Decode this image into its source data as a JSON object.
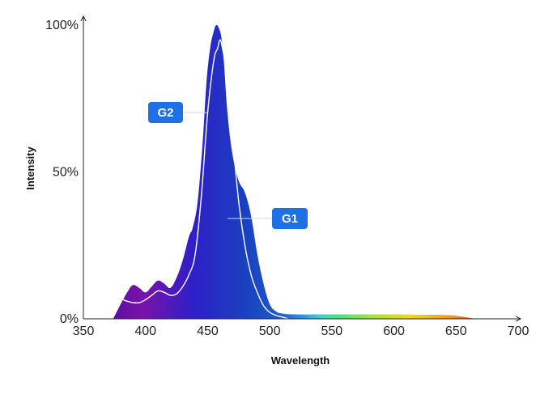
{
  "chart_data": {
    "type": "area",
    "title": "",
    "xlabel": "Wavelength",
    "ylabel": "Intensity",
    "xlim": [
      350,
      700
    ],
    "ylim": [
      0,
      100
    ],
    "x_ticks": [
      350,
      400,
      450,
      500,
      550,
      600,
      650,
      700
    ],
    "x_tick_labels": [
      "350",
      "400",
      "450",
      "500",
      "550",
      "600",
      "650",
      "700"
    ],
    "y_ticks": [
      0,
      50,
      100
    ],
    "y_tick_labels": [
      "0%",
      "50%",
      "100%"
    ],
    "grid": false,
    "legend": "none",
    "series": [
      {
        "name": "G2",
        "style": "filled area with spectral gradient",
        "x": [
          374,
          380,
          386,
          390,
          395,
          400,
          405,
          410,
          415,
          420,
          425,
          430,
          435,
          438,
          442,
          446,
          449,
          452,
          455,
          457,
          459,
          461,
          463,
          466,
          470,
          475,
          480,
          485,
          490,
          495,
          500,
          505,
          510,
          520,
          540,
          560,
          580,
          600,
          620,
          640,
          650,
          660,
          665
        ],
        "values": [
          0,
          5,
          9.5,
          11.5,
          10.5,
          9,
          11,
          13,
          12,
          10.5,
          14,
          20,
          28,
          31,
          40,
          60,
          80,
          92,
          98,
          100,
          99,
          96,
          88,
          70,
          56,
          47,
          43,
          35,
          22,
          12,
          5,
          2.5,
          1.8,
          1.5,
          1.5,
          1.5,
          1.5,
          1.5,
          1.4,
          1.3,
          1.0,
          0.4,
          0
        ]
      },
      {
        "name": "G1",
        "style": "white line",
        "x": [
          376,
          380,
          385,
          390,
          395,
          400,
          405,
          410,
          415,
          420,
          425,
          430,
          435,
          440,
          445,
          450,
          455,
          458,
          460,
          462,
          465,
          470,
          475,
          480,
          485,
          490,
          495,
          500,
          505,
          510,
          515
        ],
        "values": [
          4,
          6.5,
          6,
          5.5,
          5.5,
          6.5,
          8,
          9.5,
          9,
          8,
          8.5,
          11,
          15,
          22,
          42,
          70,
          88,
          92,
          95,
          92,
          84,
          62,
          40,
          25,
          15,
          9,
          4.5,
          2.2,
          1.2,
          0.6,
          0
        ]
      }
    ],
    "annotations": [
      {
        "label": "G2",
        "points_to": [
          450,
          72
        ]
      },
      {
        "label": "G1",
        "points_to": [
          466,
          35
        ]
      }
    ],
    "colors": {
      "badge": "#1f6fe5",
      "axis": "#222222",
      "g1_line": "#ffffff",
      "gradient": [
        "#5a0ea3",
        "#7b12a8",
        "#2e1fc8",
        "#1a3fbf",
        "#1e5bc8",
        "#2a8fe0",
        "#3bd0d0",
        "#4be08a",
        "#a8e23a",
        "#f2d817",
        "#f0a020",
        "#e4572e"
      ]
    }
  }
}
